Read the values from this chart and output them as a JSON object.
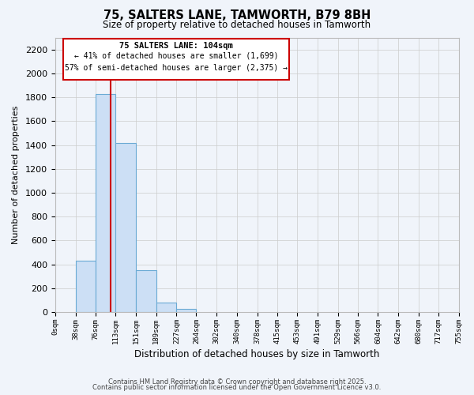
{
  "title": "75, SALTERS LANE, TAMWORTH, B79 8BH",
  "subtitle": "Size of property relative to detached houses in Tamworth",
  "xlabel": "Distribution of detached houses by size in Tamworth",
  "ylabel": "Number of detached properties",
  "bar_color": "#ccdff5",
  "bar_edge_color": "#6aaad4",
  "bins": [
    0,
    38,
    76,
    113,
    151,
    189,
    227,
    264,
    302,
    340,
    378,
    415,
    453,
    491,
    529,
    566,
    604,
    642,
    680,
    717,
    755
  ],
  "bin_labels": [
    "0sqm",
    "38sqm",
    "76sqm",
    "113sqm",
    "151sqm",
    "189sqm",
    "227sqm",
    "264sqm",
    "302sqm",
    "340sqm",
    "378sqm",
    "415sqm",
    "453sqm",
    "491sqm",
    "529sqm",
    "566sqm",
    "604sqm",
    "642sqm",
    "680sqm",
    "717sqm",
    "755sqm"
  ],
  "bar_heights": [
    0,
    430,
    1830,
    1415,
    350,
    80,
    25,
    0,
    0,
    0,
    0,
    0,
    0,
    0,
    0,
    0,
    0,
    0,
    0,
    0
  ],
  "ylim": [
    0,
    2300
  ],
  "yticks": [
    0,
    200,
    400,
    600,
    800,
    1000,
    1200,
    1400,
    1600,
    1800,
    2000,
    2200
  ],
  "property_line_x": 104,
  "annotation_title": "75 SALTERS LANE: 104sqm",
  "annotation_line1": "← 41% of detached houses are smaller (1,699)",
  "annotation_line2": "57% of semi-detached houses are larger (2,375) →",
  "red_line_color": "#cc0000",
  "annotation_border_color": "#cc0000",
  "grid_color": "#cccccc",
  "background_color": "#f0f4fa",
  "footer_line1": "Contains HM Land Registry data © Crown copyright and database right 2025.",
  "footer_line2": "Contains public sector information licensed under the Open Government Licence v3.0."
}
